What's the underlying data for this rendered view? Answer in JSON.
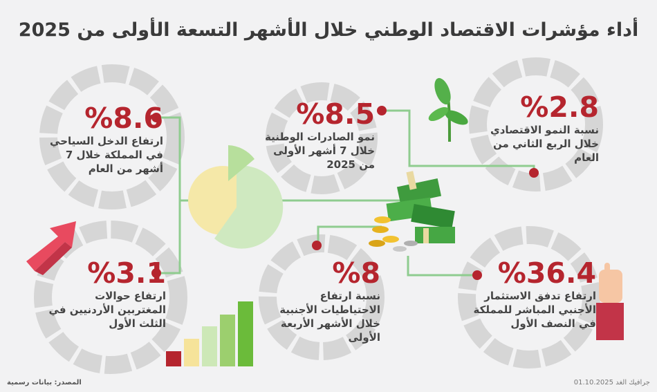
{
  "title": "أداء مؤشرات الاقتصاد الوطني خلال الأشهر التسعة الأولى من 2025",
  "stats": [
    {
      "value": "%8.6",
      "desc": "ارتفاع الدخل السياحي في المملكة خلال 7 أشهر من العام"
    },
    {
      "value": "%8.5",
      "desc": "نمو الصادرات الوطنية خلال 7 أشهر الأولى من 2025"
    },
    {
      "value": "%2.8",
      "desc": "نسبة النمو الاقتصادي خلال الربع الثاني من العام"
    },
    {
      "value": "%3.1",
      "desc": "ارتفاع حوالات المغتربين الأردنيين في الثلث الأول"
    },
    {
      "value": "%8",
      "desc": "نسبة ارتفاع الاحتياطيات الأجنبية خلال الأشهر الأربعة الأولى"
    },
    {
      "value": "%36.4",
      "desc": "ارتفاع تدفق الاستثمار الأجنبي المباشر للمملكة في النصف الأول"
    }
  ],
  "footer": {
    "source": "المصدر: بيانات رسمية",
    "credit": "جرافيك الغد 01.10.2025"
  },
  "colors": {
    "accent_red": "#b5252e",
    "line_green": "#8fcc8f",
    "ring_gray": "#dcdcdc"
  },
  "icons": [
    "money-stack-icon",
    "coins-icon",
    "plant-icon",
    "arrow-up-icon",
    "hand-pointing-icon",
    "bar-chart-icon",
    "pie-chart-icon"
  ]
}
